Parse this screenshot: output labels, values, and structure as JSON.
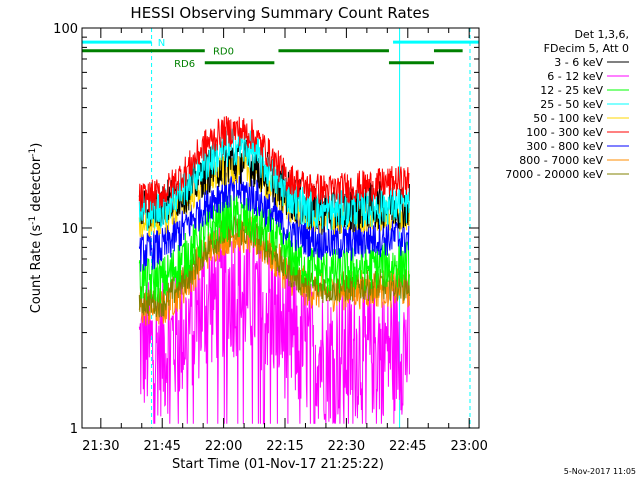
{
  "chart_data": {
    "type": "line",
    "title": "HESSI Observing Summary Count Rates",
    "xlabel": "Start Time (01-Nov-17 21:25:22)",
    "ylabel_main": "Count Rate (s",
    "ylabel_sup1": "-1",
    "ylabel_mid": " detector",
    "ylabel_sup2": "-1",
    "ylabel_end": ")",
    "y_scale": "log",
    "ylim": [
      1,
      100
    ],
    "x_unit": "minutes after 21:25:22",
    "xlim": [
      0,
      97
    ],
    "x_ticks": [
      {
        "label": "21:30",
        "value": 4.6
      },
      {
        "label": "21:45",
        "value": 19.6
      },
      {
        "label": "22:00",
        "value": 34.6
      },
      {
        "label": "22:15",
        "value": 49.6
      },
      {
        "label": "22:30",
        "value": 64.6
      },
      {
        "label": "22:45",
        "value": 79.6
      },
      {
        "label": "23:00",
        "value": 94.6
      }
    ],
    "y_ticks": [
      {
        "label": "1",
        "value": 1
      },
      {
        "label": "10",
        "value": 10
      },
      {
        "label": "100",
        "value": 100
      }
    ],
    "legend_header": [
      "Det 1,3,6,",
      "FDecim 5, Att 0"
    ],
    "legend_position": "right",
    "data_start": 14,
    "data_end": 80,
    "series": [
      {
        "name": "3 - 6 keV",
        "color": "#000000",
        "points": [
          [
            14,
            13
          ],
          [
            20,
            13
          ],
          [
            26,
            16
          ],
          [
            30,
            19
          ],
          [
            34,
            21
          ],
          [
            38,
            22
          ],
          [
            42,
            21
          ],
          [
            46,
            18
          ],
          [
            50,
            15
          ],
          [
            55,
            12.5
          ],
          [
            60,
            12
          ],
          [
            66,
            12.5
          ],
          [
            72,
            13
          ],
          [
            76,
            13
          ],
          [
            80,
            13
          ]
        ],
        "spread": 0.12
      },
      {
        "name": "6 - 12 keV",
        "color": "#ff00ff",
        "points": [
          [
            14,
            2.5
          ],
          [
            20,
            2.5
          ],
          [
            26,
            3.2
          ],
          [
            30,
            4.2
          ],
          [
            34,
            4.8
          ],
          [
            38,
            5
          ],
          [
            42,
            4.6
          ],
          [
            46,
            4
          ],
          [
            50,
            3
          ],
          [
            55,
            2.5
          ],
          [
            60,
            2.3
          ],
          [
            66,
            2.4
          ],
          [
            72,
            2.5
          ],
          [
            76,
            2.6
          ],
          [
            80,
            2.6
          ]
        ],
        "spread": 0.35
      },
      {
        "name": "12 - 25 keV",
        "color": "#00ff00",
        "points": [
          [
            14,
            5.5
          ],
          [
            20,
            5.5
          ],
          [
            26,
            7.5
          ],
          [
            30,
            9.5
          ],
          [
            34,
            11
          ],
          [
            38,
            11.5
          ],
          [
            42,
            10.5
          ],
          [
            46,
            9.5
          ],
          [
            50,
            7.5
          ],
          [
            55,
            6.5
          ],
          [
            60,
            6
          ],
          [
            66,
            6.2
          ],
          [
            72,
            6.5
          ],
          [
            76,
            6.5
          ],
          [
            80,
            6.8
          ]
        ],
        "spread": 0.12
      },
      {
        "name": "25 - 50 keV",
        "color": "#00ffff",
        "points": [
          [
            14,
            12
          ],
          [
            20,
            12.5
          ],
          [
            26,
            17
          ],
          [
            30,
            21
          ],
          [
            34,
            24
          ],
          [
            38,
            26
          ],
          [
            42,
            24
          ],
          [
            46,
            19
          ],
          [
            50,
            15
          ],
          [
            55,
            12.5
          ],
          [
            60,
            12
          ],
          [
            66,
            12.5
          ],
          [
            72,
            12.8
          ],
          [
            76,
            13
          ],
          [
            80,
            13
          ]
        ],
        "spread": 0.1
      },
      {
        "name": "50 - 100 keV",
        "color": "#ffd700",
        "points": [
          [
            14,
            10.5
          ],
          [
            20,
            11
          ],
          [
            26,
            14
          ],
          [
            30,
            17
          ],
          [
            34,
            19
          ],
          [
            38,
            20
          ],
          [
            42,
            19
          ],
          [
            46,
            16
          ],
          [
            50,
            13
          ],
          [
            55,
            11.5
          ],
          [
            60,
            11
          ],
          [
            66,
            11.2
          ],
          [
            72,
            11.5
          ],
          [
            76,
            11.5
          ],
          [
            80,
            11.5
          ]
        ],
        "spread": 0.08
      },
      {
        "name": "100 - 300 keV",
        "color": "#ff0000",
        "points": [
          [
            14,
            14
          ],
          [
            20,
            15
          ],
          [
            26,
            20
          ],
          [
            30,
            26
          ],
          [
            34,
            30
          ],
          [
            38,
            31
          ],
          [
            42,
            29
          ],
          [
            46,
            23
          ],
          [
            50,
            18
          ],
          [
            55,
            16
          ],
          [
            60,
            15.5
          ],
          [
            66,
            16
          ],
          [
            72,
            16.5
          ],
          [
            76,
            17
          ],
          [
            80,
            17
          ]
        ],
        "spread": 0.08
      },
      {
        "name": "300 - 800 keV",
        "color": "#0000ff",
        "points": [
          [
            14,
            7.5
          ],
          [
            20,
            8
          ],
          [
            26,
            10.5
          ],
          [
            30,
            13
          ],
          [
            34,
            15
          ],
          [
            38,
            15.5
          ],
          [
            42,
            14.5
          ],
          [
            46,
            12
          ],
          [
            50,
            10
          ],
          [
            55,
            9
          ],
          [
            60,
            8.5
          ],
          [
            66,
            8.5
          ],
          [
            72,
            9
          ],
          [
            76,
            9
          ],
          [
            80,
            9
          ]
        ],
        "spread": 0.1
      },
      {
        "name": "800 - 7000 keV",
        "color": "#ff8c00",
        "points": [
          [
            14,
            4
          ],
          [
            20,
            4
          ],
          [
            26,
            5.5
          ],
          [
            30,
            7.5
          ],
          [
            34,
            9
          ],
          [
            38,
            9.5
          ],
          [
            42,
            9
          ],
          [
            46,
            7.5
          ],
          [
            50,
            6
          ],
          [
            55,
            5
          ],
          [
            60,
            4.8
          ],
          [
            66,
            4.9
          ],
          [
            72,
            5
          ],
          [
            76,
            5
          ],
          [
            80,
            5
          ]
        ],
        "spread": 0.1
      },
      {
        "name": "7000 - 20000 keV",
        "color": "#808000",
        "points": [
          [
            14,
            4.3
          ],
          [
            20,
            4.3
          ],
          [
            26,
            5.8
          ],
          [
            30,
            7.8
          ],
          [
            34,
            9.3
          ],
          [
            38,
            9.8
          ],
          [
            42,
            9.2
          ],
          [
            46,
            7.8
          ],
          [
            50,
            6.2
          ],
          [
            55,
            5.2
          ],
          [
            60,
            5
          ],
          [
            66,
            5.1
          ],
          [
            72,
            5.2
          ],
          [
            76,
            5.2
          ],
          [
            80,
            5.2
          ]
        ],
        "spread": 0.08
      }
    ],
    "flag_rows": [
      {
        "label": "N",
        "color": "#00ffff",
        "y": 85,
        "segments": [
          [
            0,
            17
          ],
          [
            76,
            97
          ]
        ]
      },
      {
        "label": "RD0",
        "color": "#008000",
        "y": 77,
        "segments": [
          [
            0,
            30
          ],
          [
            48,
            75
          ],
          [
            86,
            93
          ]
        ]
      },
      {
        "label": "RD6",
        "color": "#008000",
        "y": 67,
        "segments": [
          [
            30,
            47
          ],
          [
            75,
            86
          ]
        ]
      }
    ],
    "vertical_lines": [
      {
        "x": 0,
        "color": "#00ffff",
        "style": "solid"
      },
      {
        "x": 17,
        "color": "#00ffff",
        "style": "dashed"
      },
      {
        "x": 77.6,
        "color": "#00ffff",
        "style": "solid"
      },
      {
        "x": 94.8,
        "color": "#00ffff",
        "style": "dashed"
      }
    ],
    "footer": "5-Nov-2017 11:05"
  }
}
